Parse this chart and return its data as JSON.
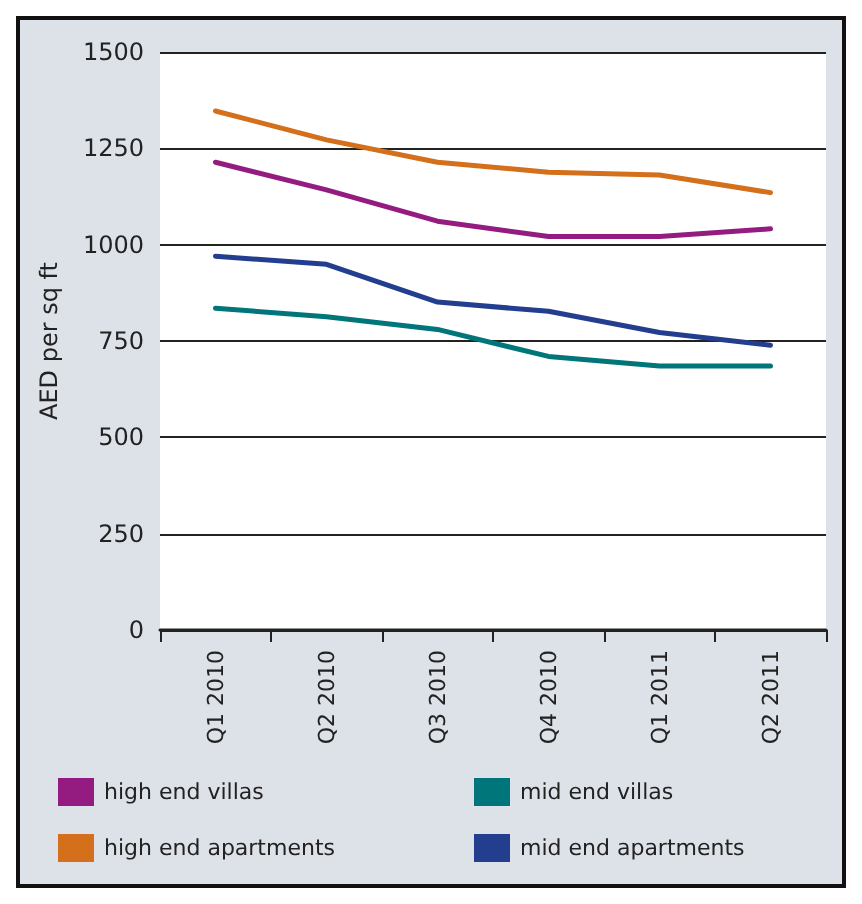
{
  "chart_data": {
    "type": "line",
    "ylabel": "AED per sq ft",
    "categories": [
      "Q1 2010",
      "Q2 2010",
      "Q3 2010",
      "Q4 2010",
      "Q1 2011",
      "Q2 2011"
    ],
    "series": [
      {
        "name": "high end villas",
        "color": "#941c80",
        "values": [
          1214,
          1142,
          1061,
          1021,
          1021,
          1041
        ]
      },
      {
        "name": "mid end villas",
        "color": "#00767a",
        "values": [
          835,
          813,
          780,
          710,
          685,
          685
        ]
      },
      {
        "name": "high end apartments",
        "color": "#d46f1b",
        "values": [
          1347,
          1272,
          1214,
          1188,
          1181,
          1135
        ]
      },
      {
        "name": "mid end apartments",
        "color": "#233d8f",
        "values": [
          970,
          949,
          851,
          827,
          772,
          739
        ]
      }
    ],
    "ylim": [
      0,
      1500
    ],
    "yticks": [
      0,
      250,
      500,
      750,
      1000,
      1250,
      1500
    ],
    "grid": "y",
    "legend": "bottom",
    "marker": "none",
    "line_style": "solid"
  }
}
